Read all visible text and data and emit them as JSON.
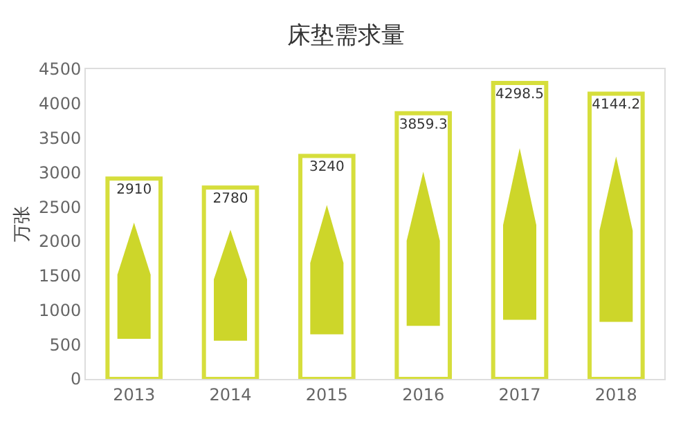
{
  "chart_data": {
    "type": "bar",
    "title": "床垫需求量",
    "ylabel": "万张",
    "categories": [
      "2013",
      "2014",
      "2015",
      "2016",
      "2017",
      "2018"
    ],
    "values": [
      2910,
      2780,
      3240,
      3859.3,
      4298.5,
      4144.2
    ],
    "color": "#d6de3c",
    "ylim": [
      0,
      4500
    ],
    "yticks": [
      0,
      500,
      1000,
      1500,
      2000,
      2500,
      3000,
      3500,
      4000,
      4500
    ],
    "data_labels": true,
    "grid": false,
    "legend": false
  }
}
